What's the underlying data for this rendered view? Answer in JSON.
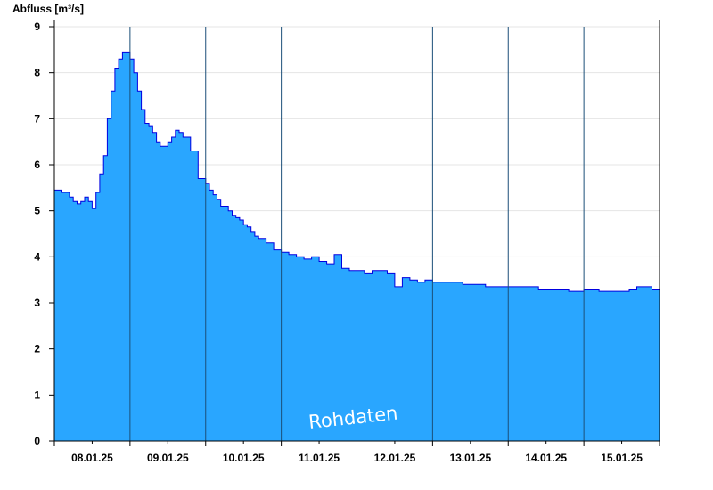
{
  "chart_data": {
    "type": "area",
    "ylabel": "Abfluss [m³/s]",
    "watermark": "Rohdaten",
    "ylim": [
      0,
      9
    ],
    "yticks": [
      0,
      1,
      2,
      3,
      4,
      5,
      6,
      7,
      8,
      9
    ],
    "xlim_days": [
      0,
      8
    ],
    "x_labels": [
      "08.01.25",
      "09.01.25",
      "10.01.25",
      "11.01.25",
      "12.01.25",
      "13.01.25",
      "14.01.25",
      "15.01.25"
    ],
    "grid": true,
    "fill_color": "#29a6ff",
    "line_color": "#0000e0",
    "series": [
      {
        "x": [
          0,
          0.1,
          0.2,
          0.25,
          0.3,
          0.35,
          0.4,
          0.45,
          0.5,
          0.55,
          0.6,
          0.65,
          0.7,
          0.75,
          0.8,
          0.85,
          0.9,
          0.95,
          1.0,
          1.05,
          1.1,
          1.15,
          1.2,
          1.25,
          1.3,
          1.35,
          1.4,
          1.45,
          1.5,
          1.55,
          1.6,
          1.65,
          1.7,
          1.8,
          1.9,
          2.0,
          2.05,
          2.1,
          2.15,
          2.2,
          2.3,
          2.35,
          2.4,
          2.45,
          2.5,
          2.55,
          2.6,
          2.65,
          2.7,
          2.8,
          2.9,
          3.0,
          3.1,
          3.15,
          3.2,
          3.3,
          3.4,
          3.5,
          3.6,
          3.7,
          3.8,
          3.9,
          4.0,
          4.1,
          4.2,
          4.3,
          4.4,
          4.5,
          4.6,
          4.7,
          4.8,
          4.9,
          5.0,
          5.1,
          5.2,
          5.3,
          5.4,
          5.5,
          5.6,
          5.7,
          5.8,
          5.9,
          6.0,
          6.2,
          6.4,
          6.6,
          6.8,
          7.0,
          7.2,
          7.4,
          7.6,
          7.7,
          7.8,
          7.9,
          8.0
        ],
        "y": [
          5.45,
          5.4,
          5.3,
          5.2,
          5.15,
          5.2,
          5.3,
          5.2,
          5.05,
          5.4,
          5.8,
          6.2,
          7.0,
          7.6,
          8.1,
          8.3,
          8.45,
          8.45,
          8.3,
          8.0,
          7.6,
          7.2,
          6.9,
          6.85,
          6.7,
          6.5,
          6.4,
          6.4,
          6.5,
          6.6,
          6.75,
          6.7,
          6.6,
          6.3,
          5.7,
          5.6,
          5.45,
          5.35,
          5.25,
          5.1,
          5.0,
          4.9,
          4.85,
          4.8,
          4.7,
          4.65,
          4.55,
          4.45,
          4.4,
          4.3,
          4.15,
          4.1,
          4.05,
          4.05,
          4.0,
          3.95,
          4.0,
          3.9,
          3.85,
          4.05,
          3.75,
          3.7,
          3.7,
          3.65,
          3.7,
          3.7,
          3.65,
          3.35,
          3.55,
          3.5,
          3.45,
          3.5,
          3.45,
          3.45,
          3.45,
          3.45,
          3.4,
          3.4,
          3.4,
          3.35,
          3.35,
          3.35,
          3.35,
          3.35,
          3.3,
          3.3,
          3.25,
          3.3,
          3.25,
          3.25,
          3.3,
          3.35,
          3.35,
          3.3,
          3.3
        ]
      }
    ]
  }
}
